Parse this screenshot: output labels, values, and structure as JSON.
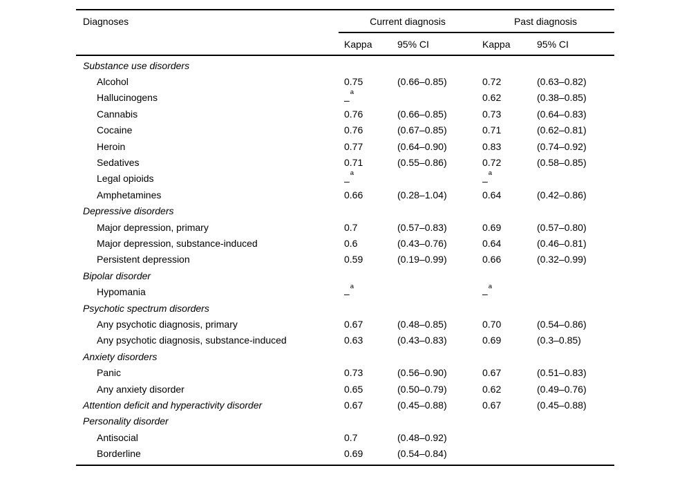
{
  "table": {
    "header": {
      "diagnoses": "Diagnoses",
      "current_spanner": "Current diagnosis",
      "past_spanner": "Past diagnosis",
      "kappa_current": "Kappa",
      "ci_current": "95% CI",
      "kappa_past": "Kappa",
      "ci_past": "95% CI"
    },
    "missing_value_marker": "–a",
    "footnote_superscript": "a",
    "colors": {
      "text": "#000000",
      "background": "#ffffff",
      "rule": "#000000"
    },
    "rows": [
      {
        "label": "Substance use disorders",
        "style": "section",
        "k1": "",
        "ci1": "",
        "k2": "",
        "ci2": ""
      },
      {
        "label": "Alcohol",
        "style": "item",
        "k1": "0.75",
        "ci1": "(0.66–0.85)",
        "k2": "0.72",
        "ci2": "(0.63–0.82)"
      },
      {
        "label": "Hallucinogens",
        "style": "item",
        "k1": "–a",
        "ci1": "",
        "k2": "0.62",
        "ci2": "(0.38–0.85)"
      },
      {
        "label": "Cannabis",
        "style": "item",
        "k1": "0.76",
        "ci1": "(0.66–0.85)",
        "k2": "0.73",
        "ci2": "(0.64–0.83)"
      },
      {
        "label": "Cocaine",
        "style": "item",
        "k1": "0.76",
        "ci1": "(0.67–0.85)",
        "k2": "0.71",
        "ci2": "(0.62–0.81)"
      },
      {
        "label": "Heroin",
        "style": "item",
        "k1": "0.77",
        "ci1": "(0.64–0.90)",
        "k2": "0.83",
        "ci2": "(0.74–0.92)"
      },
      {
        "label": "Sedatives",
        "style": "item",
        "k1": "0.71",
        "ci1": "(0.55–0.86)",
        "k2": "0.72",
        "ci2": "(0.58–0.85)"
      },
      {
        "label": "Legal opioids",
        "style": "item",
        "k1": "–a",
        "ci1": "",
        "k2": "–a",
        "ci2": ""
      },
      {
        "label": "Amphetamines",
        "style": "item",
        "k1": "0.66",
        "ci1": "(0.28–1.04)",
        "k2": "0.64",
        "ci2": "(0.42–0.86)"
      },
      {
        "label": "Depressive disorders",
        "style": "section",
        "k1": "",
        "ci1": "",
        "k2": "",
        "ci2": ""
      },
      {
        "label": "Major depression, primary",
        "style": "item",
        "k1": "0.7",
        "ci1": "(0.57–0.83)",
        "k2": "0.69",
        "ci2": "(0.57–0.80)"
      },
      {
        "label": "Major depression, substance-induced",
        "style": "item",
        "k1": "0.6",
        "ci1": "(0.43–0.76)",
        "k2": "0.64",
        "ci2": "(0.46–0.81)"
      },
      {
        "label": "Persistent depression",
        "style": "item",
        "k1": "0.59",
        "ci1": "(0.19–0.99)",
        "k2": "0.66",
        "ci2": "(0.32–0.99)"
      },
      {
        "label": "Bipolar disorder",
        "style": "section",
        "k1": "",
        "ci1": "",
        "k2": "",
        "ci2": ""
      },
      {
        "label": "Hypomania",
        "style": "item",
        "k1": "–a",
        "ci1": "",
        "k2": "–a",
        "ci2": ""
      },
      {
        "label": "Psychotic spectrum disorders",
        "style": "section",
        "k1": "",
        "ci1": "",
        "k2": "",
        "ci2": ""
      },
      {
        "label": "Any psychotic diagnosis, primary",
        "style": "item",
        "k1": "0.67",
        "ci1": "(0.48–0.85)",
        "k2": "0.70",
        "ci2": "(0.54–0.86)"
      },
      {
        "label": "Any psychotic diagnosis, substance-induced",
        "style": "item",
        "k1": "0.63",
        "ci1": "(0.43–0.83)",
        "k2": "0.69",
        "ci2": "(0.3–0.85)"
      },
      {
        "label": "Anxiety disorders",
        "style": "section",
        "k1": "",
        "ci1": "",
        "k2": "",
        "ci2": ""
      },
      {
        "label": "Panic",
        "style": "item",
        "k1": "0.73",
        "ci1": "(0.56–0.90)",
        "k2": "0.67",
        "ci2": "(0.51–0.83)"
      },
      {
        "label": "Any anxiety disorder",
        "style": "item",
        "k1": "0.65",
        "ci1": "(0.50–0.79)",
        "k2": "0.62",
        "ci2": "(0.49–0.76)"
      },
      {
        "label": "Attention deficit and hyperactivity disorder",
        "style": "section",
        "k1": "0.67",
        "ci1": "(0.45–0.88)",
        "k2": "0.67",
        "ci2": "(0.45–0.88)"
      },
      {
        "label": "Personality disorder",
        "style": "section",
        "k1": "",
        "ci1": "",
        "k2": "",
        "ci2": ""
      },
      {
        "label": "Antisocial",
        "style": "item",
        "k1": "0.7",
        "ci1": "(0.48–0.92)",
        "k2": "",
        "ci2": ""
      },
      {
        "label": "Borderline",
        "style": "item",
        "k1": "0.69",
        "ci1": "(0.54–0.84)",
        "k2": "",
        "ci2": ""
      }
    ]
  }
}
